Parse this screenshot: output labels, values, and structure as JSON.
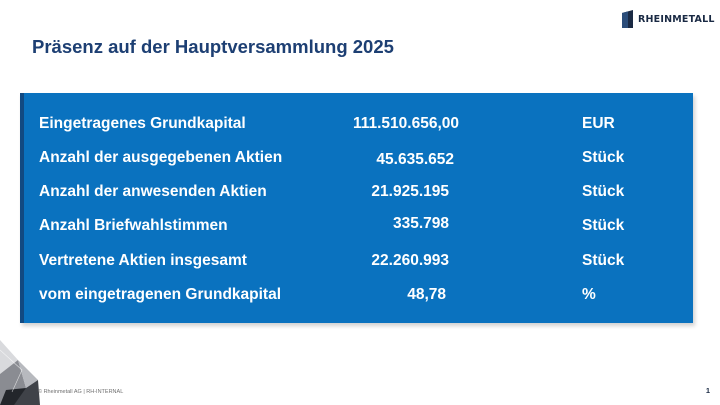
{
  "header": {
    "logo_text": "RHEINMETALL",
    "logo_icon": "rheinmetall-logo-icon",
    "brand_color": "#1a2a44"
  },
  "title": "Präsenz auf der Hauptversammlung 2025",
  "panel": {
    "background_color": "#0a72bf",
    "rows": [
      {
        "label": "Eingetragenes Grundkapital",
        "value": "111.510.656,00",
        "unit": "EUR"
      },
      {
        "label": "Anzahl der ausgegebenen Aktien",
        "value": "45.635.652",
        "unit": "Stück"
      },
      {
        "label": "Anzahl der anwesenden Aktien",
        "value": "21.925.195",
        "unit": "Stück"
      },
      {
        "label": "Anzahl Briefwahlstimmen",
        "value": "335.798",
        "unit": "Stück"
      },
      {
        "label": "Vertretene Aktien insgesamt",
        "value": "22.260.993",
        "unit": "Stück"
      },
      {
        "label": "vom eingetragenen Grundkapital",
        "value": "48,78",
        "unit": "%"
      }
    ]
  },
  "footer": {
    "text": "© Rheinmetall AG | RH-INTERNAL",
    "page_number": "1"
  }
}
